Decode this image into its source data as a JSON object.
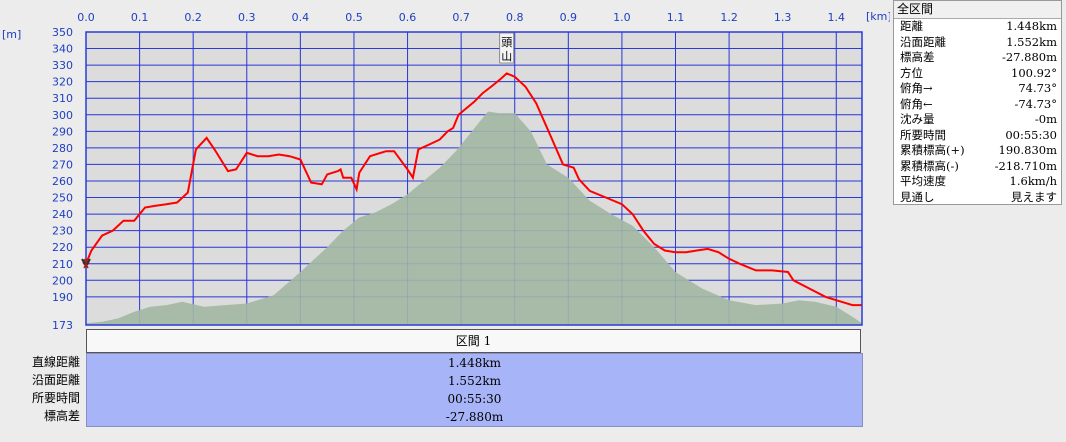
{
  "chart_data": {
    "type": "area",
    "xlabel": "[km]",
    "ylabel": "[m]",
    "x_ticks": [
      0.0,
      0.1,
      0.2,
      0.3,
      0.4,
      0.5,
      0.6,
      0.7,
      0.8,
      0.9,
      1.0,
      1.1,
      1.2,
      1.3,
      1.4
    ],
    "x_tick_labels": [
      "0.0",
      "0.1",
      "0.2",
      "0.3",
      "0.4",
      "0.5",
      "0.6",
      "0.7",
      "0.8",
      "0.9",
      "1.0",
      "1.1",
      "1.2",
      "1.3",
      "1.4"
    ],
    "y_ticks": [
      190,
      200,
      210,
      220,
      230,
      240,
      250,
      260,
      270,
      280,
      290,
      300,
      310,
      320,
      330,
      340,
      350
    ],
    "y_min_label": "173",
    "xlim": [
      0,
      1.448
    ],
    "ylim": [
      173,
      350
    ],
    "grid": true,
    "annotation": "頭山",
    "series": [
      {
        "kind": "terrain-area",
        "color": "#a8bba8",
        "points": [
          [
            0.0,
            174
          ],
          [
            0.03,
            175
          ],
          [
            0.06,
            177
          ],
          [
            0.09,
            181
          ],
          [
            0.12,
            184
          ],
          [
            0.15,
            185
          ],
          [
            0.18,
            187
          ],
          [
            0.22,
            184
          ],
          [
            0.26,
            185
          ],
          [
            0.3,
            186
          ],
          [
            0.35,
            191
          ],
          [
            0.4,
            205
          ],
          [
            0.45,
            220
          ],
          [
            0.48,
            230
          ],
          [
            0.51,
            238
          ],
          [
            0.54,
            241
          ],
          [
            0.57,
            246
          ],
          [
            0.6,
            252
          ],
          [
            0.63,
            260
          ],
          [
            0.66,
            268
          ],
          [
            0.69,
            278
          ],
          [
            0.72,
            290
          ],
          [
            0.75,
            302
          ],
          [
            0.77,
            301
          ],
          [
            0.8,
            301
          ],
          [
            0.83,
            290
          ],
          [
            0.86,
            270
          ],
          [
            0.9,
            262
          ],
          [
            0.94,
            248
          ],
          [
            0.98,
            240
          ],
          [
            1.02,
            233
          ],
          [
            1.06,
            220
          ],
          [
            1.1,
            205
          ],
          [
            1.15,
            195
          ],
          [
            1.2,
            188
          ],
          [
            1.25,
            185
          ],
          [
            1.3,
            186
          ],
          [
            1.33,
            188
          ],
          [
            1.36,
            187
          ],
          [
            1.4,
            184
          ],
          [
            1.43,
            178
          ],
          [
            1.448,
            174
          ]
        ]
      },
      {
        "kind": "route-line",
        "color": "#ff0000",
        "points": [
          [
            0.0,
            210
          ],
          [
            0.01,
            218
          ],
          [
            0.03,
            227
          ],
          [
            0.05,
            230
          ],
          [
            0.07,
            236
          ],
          [
            0.09,
            236
          ],
          [
            0.11,
            244
          ],
          [
            0.13,
            245
          ],
          [
            0.15,
            246
          ],
          [
            0.17,
            247
          ],
          [
            0.19,
            253
          ],
          [
            0.205,
            279
          ],
          [
            0.225,
            286
          ],
          [
            0.24,
            279
          ],
          [
            0.265,
            266
          ],
          [
            0.28,
            267
          ],
          [
            0.3,
            277
          ],
          [
            0.32,
            275
          ],
          [
            0.34,
            275
          ],
          [
            0.36,
            276
          ],
          [
            0.38,
            275
          ],
          [
            0.4,
            273
          ],
          [
            0.42,
            259
          ],
          [
            0.44,
            258
          ],
          [
            0.45,
            264
          ],
          [
            0.47,
            266
          ],
          [
            0.475,
            267
          ],
          [
            0.48,
            262
          ],
          [
            0.495,
            262
          ],
          [
            0.505,
            255
          ],
          [
            0.51,
            265
          ],
          [
            0.53,
            275
          ],
          [
            0.56,
            278
          ],
          [
            0.575,
            278
          ],
          [
            0.6,
            267
          ],
          [
            0.61,
            262
          ],
          [
            0.62,
            279
          ],
          [
            0.64,
            282
          ],
          [
            0.66,
            285
          ],
          [
            0.675,
            290
          ],
          [
            0.685,
            292
          ],
          [
            0.695,
            300
          ],
          [
            0.71,
            304
          ],
          [
            0.725,
            308
          ],
          [
            0.74,
            313
          ],
          [
            0.76,
            318
          ],
          [
            0.775,
            322
          ],
          [
            0.785,
            325
          ],
          [
            0.8,
            323
          ],
          [
            0.82,
            317
          ],
          [
            0.84,
            307
          ],
          [
            0.87,
            285
          ],
          [
            0.89,
            270
          ],
          [
            0.91,
            268
          ],
          [
            0.92,
            261
          ],
          [
            0.94,
            254
          ],
          [
            0.97,
            250
          ],
          [
            1.0,
            246
          ],
          [
            1.02,
            240
          ],
          [
            1.04,
            230
          ],
          [
            1.06,
            222
          ],
          [
            1.08,
            218
          ],
          [
            1.1,
            217
          ],
          [
            1.12,
            217
          ],
          [
            1.14,
            218
          ],
          [
            1.16,
            219
          ],
          [
            1.18,
            217
          ],
          [
            1.2,
            213
          ],
          [
            1.22,
            210
          ],
          [
            1.25,
            206
          ],
          [
            1.28,
            206
          ],
          [
            1.31,
            205
          ],
          [
            1.32,
            200
          ],
          [
            1.35,
            195
          ],
          [
            1.38,
            190
          ],
          [
            1.41,
            187
          ],
          [
            1.43,
            185
          ],
          [
            1.448,
            185
          ]
        ]
      }
    ]
  },
  "section": {
    "title": "区間 1",
    "labels": [
      "直線距離",
      "沿面距離",
      "所要時間",
      "標高差"
    ],
    "values": [
      "1.448km",
      "1.552km",
      "00:55:30",
      "-27.880m"
    ]
  },
  "summary": {
    "title": "全区間",
    "rows": [
      {
        "label": "距離",
        "value": "1.448km"
      },
      {
        "label": "沿面距離",
        "value": "1.552km"
      },
      {
        "label": "標高差",
        "value": "-27.880m"
      },
      {
        "label": "方位",
        "value": "100.92°"
      },
      {
        "label": "俯角→",
        "value": "74.73°"
      },
      {
        "label": "俯角←",
        "value": "-74.73°"
      },
      {
        "label": "沈み量",
        "value": "-0m"
      },
      {
        "label": "所要時間",
        "value": "00:55:30"
      },
      {
        "label": "累積標高(+)",
        "value": "190.830m"
      },
      {
        "label": "累積標高(-)",
        "value": "-218.710m"
      },
      {
        "label": "平均速度",
        "value": "1.6km/h"
      },
      {
        "label": "見通し",
        "value": "見えます"
      }
    ]
  },
  "colors": {
    "plot_bg": "#dcdcdc",
    "grid": "#2b3bd6",
    "route": "#ff0000",
    "terrain": "#a8bba8",
    "section_panel": "#a8b4f8"
  }
}
